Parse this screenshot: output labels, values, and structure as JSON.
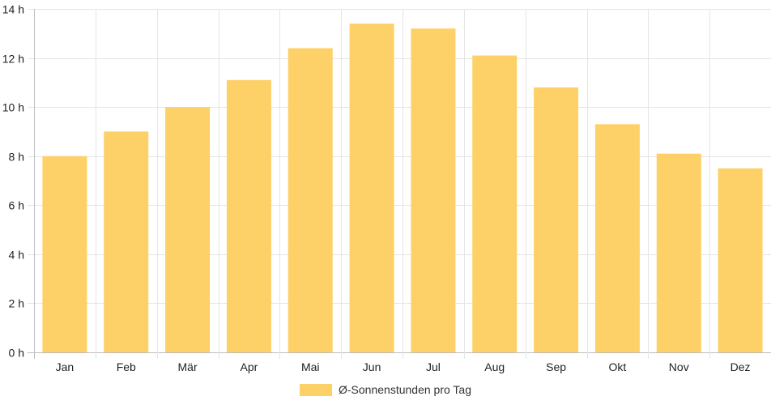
{
  "chart_data": {
    "type": "bar",
    "categories": [
      "Jan",
      "Feb",
      "Mär",
      "Apr",
      "Mai",
      "Jun",
      "Jul",
      "Aug",
      "Sep",
      "Okt",
      "Nov",
      "Dez"
    ],
    "series": [
      {
        "name": "Ø-Sonnenstunden pro Tag",
        "values": [
          8.0,
          9.0,
          10.0,
          11.1,
          12.4,
          13.4,
          13.2,
          12.1,
          10.8,
          9.3,
          8.1,
          7.5
        ],
        "color": "#fdd068"
      }
    ],
    "y_ticks": [
      "0 h",
      "2 h",
      "4 h",
      "6 h",
      "8 h",
      "10 h",
      "12 h",
      "14 h"
    ],
    "ylim": [
      0,
      14
    ],
    "grid": true,
    "legend_position": "bottom"
  }
}
